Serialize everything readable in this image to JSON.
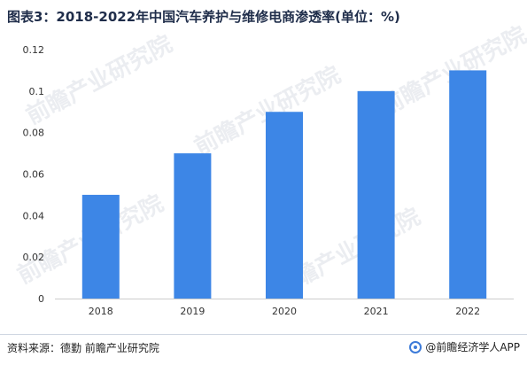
{
  "title": "图表3：2018-2022年中国汽车养护与维修电商渗透率(单位：%)",
  "source": "资料来源：德勤 前瞻产业研究院",
  "brand": "@前瞻经济学人APP",
  "watermark_text": "前瞻产业研究院",
  "colors": {
    "bar": "#3d86e6",
    "axis": "#cccccc",
    "tick_text": "#333333"
  },
  "chart_data": {
    "type": "bar",
    "categories": [
      "2018",
      "2019",
      "2020",
      "2021",
      "2022"
    ],
    "values": [
      0.05,
      0.07,
      0.09,
      0.1,
      0.11
    ],
    "title": "图表3：2018-2022年中国汽车养护与维修电商渗透率(单位：%)",
    "xlabel": "",
    "ylabel": "",
    "ylim": [
      0,
      0.12
    ],
    "yticks": [
      "0",
      "0.02",
      "0.04",
      "0.06",
      "0.08",
      "0.1",
      "0.12"
    ],
    "ytick_values": [
      0,
      0.02,
      0.04,
      0.06,
      0.08,
      0.1,
      0.12
    ],
    "grid": false,
    "legend": "none"
  }
}
